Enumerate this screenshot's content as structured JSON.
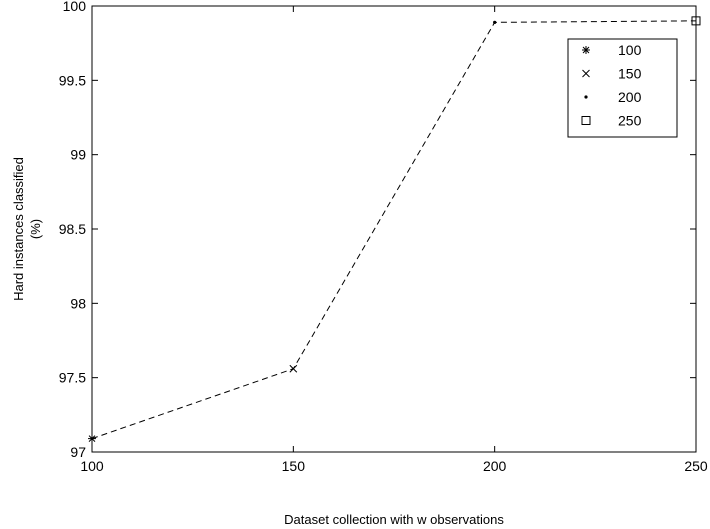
{
  "chart_data": {
    "type": "line",
    "xlabel": "Dataset collection with w observations",
    "ylabel_line1": "Hard instances classified",
    "ylabel_line2": "(%)",
    "xlim": [
      100,
      250
    ],
    "ylim": [
      97,
      100
    ],
    "x_ticks": [
      100,
      150,
      200,
      250
    ],
    "y_ticks": [
      97,
      97.5,
      98,
      98.5,
      99,
      99.5,
      100
    ],
    "x_tick_labels": [
      "100",
      "150",
      "200",
      "250"
    ],
    "y_tick_labels": [
      "97",
      "97.5",
      "98",
      "98.5",
      "99",
      "99.5",
      "100"
    ],
    "grid": false,
    "legend_position": "top-right",
    "line_style": "dashed",
    "series": [
      {
        "name": "100",
        "marker": "asterisk",
        "x": 100,
        "y": 97.09
      },
      {
        "name": "150",
        "marker": "x",
        "x": 150,
        "y": 97.56
      },
      {
        "name": "200",
        "marker": "dot",
        "x": 200,
        "y": 99.89
      },
      {
        "name": "250",
        "marker": "square",
        "x": 250,
        "y": 99.9
      }
    ]
  }
}
